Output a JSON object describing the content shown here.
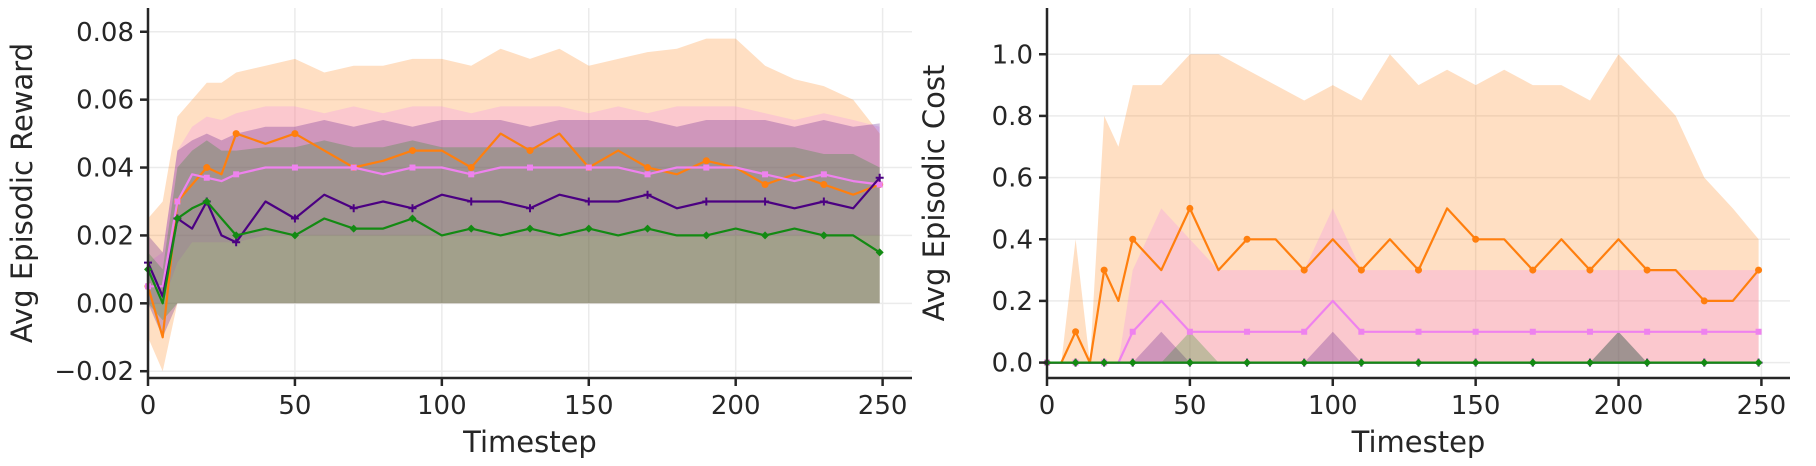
{
  "colors": {
    "orange": "#ff7f0e",
    "violet": "#ee82ee",
    "indigo": "#4b0082",
    "green": "#138a13"
  },
  "chart_data": [
    {
      "type": "line",
      "xlabel": "Timestep",
      "ylabel": "Avg Episodic Reward",
      "xlim": [
        0,
        260
      ],
      "ylim": [
        -0.022,
        0.087
      ],
      "xticks": [
        0,
        50,
        100,
        150,
        200,
        250
      ],
      "xtick_labels": [
        "0",
        "50",
        "100",
        "150",
        "200",
        "250"
      ],
      "yticks": [
        -0.02,
        0.0,
        0.02,
        0.04,
        0.06,
        0.08
      ],
      "ytick_labels": [
        "−0.02",
        "0.00",
        "0.02",
        "0.04",
        "0.06",
        "0.08"
      ],
      "grid": true,
      "x": [
        0,
        5,
        10,
        15,
        20,
        25,
        30,
        40,
        50,
        60,
        70,
        80,
        90,
        100,
        110,
        120,
        130,
        140,
        150,
        160,
        170,
        180,
        190,
        200,
        210,
        220,
        230,
        240,
        249
      ],
      "series": [
        {
          "color": "orange",
          "marker": "circle",
          "values": [
            0.005,
            -0.01,
            0.03,
            0.035,
            0.04,
            0.038,
            0.05,
            0.047,
            0.05,
            0.045,
            0.04,
            0.042,
            0.045,
            0.045,
            0.04,
            0.05,
            0.045,
            0.05,
            0.04,
            0.045,
            0.04,
            0.038,
            0.042,
            0.04,
            0.035,
            0.038,
            0.035,
            0.032,
            0.035
          ],
          "lower": [
            -0.01,
            -0.02,
            0.0,
            0.0,
            0.0,
            0.0,
            0.0,
            0.0,
            0.0,
            0.0,
            0.0,
            0.0,
            0.0,
            0.0,
            0.0,
            0.0,
            0.0,
            0.0,
            0.0,
            0.0,
            0.0,
            0.0,
            0.0,
            0.0,
            0.0,
            0.0,
            0.0,
            0.0,
            0.0
          ],
          "upper": [
            0.025,
            0.03,
            0.055,
            0.06,
            0.065,
            0.065,
            0.068,
            0.07,
            0.072,
            0.068,
            0.07,
            0.07,
            0.072,
            0.072,
            0.07,
            0.075,
            0.072,
            0.075,
            0.07,
            0.072,
            0.074,
            0.075,
            0.078,
            0.078,
            0.07,
            0.066,
            0.064,
            0.06,
            0.05
          ]
        },
        {
          "color": "violet",
          "marker": "square",
          "values": [
            0.005,
            0.005,
            0.03,
            0.038,
            0.037,
            0.036,
            0.038,
            0.04,
            0.04,
            0.04,
            0.04,
            0.038,
            0.04,
            0.04,
            0.038,
            0.04,
            0.04,
            0.04,
            0.04,
            0.04,
            0.038,
            0.04,
            0.04,
            0.04,
            0.038,
            0.036,
            0.038,
            0.036,
            0.035
          ],
          "lower": [
            0.0,
            0.0,
            0.012,
            0.018,
            0.018,
            0.018,
            0.018,
            0.02,
            0.02,
            0.02,
            0.02,
            0.02,
            0.02,
            0.02,
            0.02,
            0.02,
            0.02,
            0.02,
            0.02,
            0.02,
            0.02,
            0.02,
            0.02,
            0.02,
            0.02,
            0.02,
            0.02,
            0.02,
            0.02
          ],
          "upper": [
            0.012,
            0.015,
            0.045,
            0.052,
            0.055,
            0.054,
            0.056,
            0.058,
            0.058,
            0.056,
            0.058,
            0.056,
            0.058,
            0.058,
            0.056,
            0.058,
            0.058,
            0.058,
            0.056,
            0.058,
            0.056,
            0.058,
            0.058,
            0.058,
            0.056,
            0.054,
            0.056,
            0.054,
            0.052
          ]
        },
        {
          "color": "indigo",
          "marker": "plus",
          "values": [
            0.012,
            0.002,
            0.025,
            0.022,
            0.03,
            0.02,
            0.018,
            0.03,
            0.025,
            0.032,
            0.028,
            0.03,
            0.028,
            0.032,
            0.03,
            0.03,
            0.028,
            0.032,
            0.03,
            0.03,
            0.032,
            0.028,
            0.03,
            0.03,
            0.03,
            0.028,
            0.03,
            0.028,
            0.037
          ],
          "lower": [
            0.0,
            -0.01,
            0.0,
            0.0,
            0.0,
            0.0,
            0.0,
            0.0,
            0.0,
            0.0,
            0.0,
            0.0,
            0.0,
            0.0,
            0.0,
            0.0,
            0.0,
            0.0,
            0.0,
            0.0,
            0.0,
            0.0,
            0.0,
            0.0,
            0.0,
            0.0,
            0.0,
            0.0,
            0.0
          ],
          "upper": [
            0.02,
            0.015,
            0.045,
            0.048,
            0.05,
            0.048,
            0.05,
            0.052,
            0.052,
            0.054,
            0.052,
            0.054,
            0.052,
            0.054,
            0.054,
            0.054,
            0.052,
            0.054,
            0.054,
            0.054,
            0.054,
            0.052,
            0.054,
            0.054,
            0.054,
            0.052,
            0.054,
            0.052,
            0.053
          ]
        },
        {
          "color": "green",
          "marker": "diamond",
          "values": [
            0.01,
            0.0,
            0.025,
            0.028,
            0.03,
            0.025,
            0.02,
            0.022,
            0.02,
            0.025,
            0.022,
            0.022,
            0.025,
            0.02,
            0.022,
            0.02,
            0.022,
            0.02,
            0.022,
            0.02,
            0.022,
            0.02,
            0.02,
            0.022,
            0.02,
            0.022,
            0.02,
            0.02,
            0.015
          ],
          "lower": [
            0.0,
            -0.005,
            0.0,
            0.0,
            0.0,
            0.0,
            0.0,
            0.0,
            0.0,
            0.0,
            0.0,
            0.0,
            0.0,
            0.0,
            0.0,
            0.0,
            0.0,
            0.0,
            0.0,
            0.0,
            0.0,
            0.0,
            0.0,
            0.0,
            0.0,
            0.0,
            0.0,
            0.0,
            0.0
          ],
          "upper": [
            0.015,
            0.01,
            0.04,
            0.045,
            0.048,
            0.045,
            0.045,
            0.046,
            0.046,
            0.048,
            0.046,
            0.046,
            0.048,
            0.046,
            0.046,
            0.046,
            0.046,
            0.046,
            0.046,
            0.046,
            0.046,
            0.046,
            0.046,
            0.046,
            0.046,
            0.046,
            0.044,
            0.044,
            0.04
          ]
        }
      ]
    },
    {
      "type": "line",
      "xlabel": "Timestep",
      "ylabel": "Avg Episodic Cost",
      "xlim": [
        0,
        260
      ],
      "ylim": [
        -0.05,
        1.15
      ],
      "xticks": [
        0,
        50,
        100,
        150,
        200,
        250
      ],
      "xtick_labels": [
        "0",
        "50",
        "100",
        "150",
        "200",
        "250"
      ],
      "yticks": [
        0.0,
        0.2,
        0.4,
        0.6,
        0.8,
        1.0
      ],
      "ytick_labels": [
        "0.0",
        "0.2",
        "0.4",
        "0.6",
        "0.8",
        "1.0"
      ],
      "grid": true,
      "x": [
        0,
        5,
        10,
        15,
        20,
        25,
        30,
        40,
        50,
        60,
        70,
        80,
        90,
        100,
        110,
        120,
        130,
        140,
        150,
        160,
        170,
        180,
        190,
        200,
        210,
        220,
        230,
        240,
        249
      ],
      "series": [
        {
          "color": "orange",
          "marker": "circle",
          "values": [
            0.0,
            0.0,
            0.1,
            0.0,
            0.3,
            0.2,
            0.4,
            0.3,
            0.5,
            0.3,
            0.4,
            0.4,
            0.3,
            0.4,
            0.3,
            0.4,
            0.3,
            0.5,
            0.4,
            0.4,
            0.3,
            0.4,
            0.3,
            0.4,
            0.3,
            0.3,
            0.2,
            0.2,
            0.3
          ],
          "lower": [
            0.0,
            0.0,
            0.0,
            0.0,
            0.0,
            0.0,
            0.0,
            0.0,
            0.0,
            0.0,
            0.0,
            0.0,
            0.0,
            0.0,
            0.0,
            0.0,
            0.0,
            0.0,
            0.0,
            0.0,
            0.0,
            0.0,
            0.0,
            0.0,
            0.0,
            0.0,
            0.0,
            0.0,
            0.0
          ],
          "upper": [
            0.0,
            0.0,
            0.4,
            0.0,
            0.8,
            0.7,
            0.9,
            0.9,
            1.0,
            1.0,
            0.95,
            0.9,
            0.85,
            0.9,
            0.85,
            1.0,
            0.9,
            0.95,
            0.9,
            0.95,
            0.9,
            0.9,
            0.85,
            1.0,
            0.9,
            0.8,
            0.6,
            0.5,
            0.4
          ]
        },
        {
          "color": "violet",
          "marker": "square",
          "values": [
            0.0,
            0.0,
            0.0,
            0.0,
            0.0,
            0.0,
            0.1,
            0.2,
            0.1,
            0.1,
            0.1,
            0.1,
            0.1,
            0.2,
            0.1,
            0.1,
            0.1,
            0.1,
            0.1,
            0.1,
            0.1,
            0.1,
            0.1,
            0.1,
            0.1,
            0.1,
            0.1,
            0.1,
            0.1
          ],
          "lower": [
            0.0,
            0.0,
            0.0,
            0.0,
            0.0,
            0.0,
            0.0,
            0.0,
            0.0,
            0.0,
            0.0,
            0.0,
            0.0,
            0.0,
            0.0,
            0.0,
            0.0,
            0.0,
            0.0,
            0.0,
            0.0,
            0.0,
            0.0,
            0.0,
            0.0,
            0.0,
            0.0,
            0.0,
            0.0
          ],
          "upper": [
            0.0,
            0.0,
            0.0,
            0.0,
            0.0,
            0.0,
            0.3,
            0.5,
            0.4,
            0.3,
            0.3,
            0.3,
            0.3,
            0.5,
            0.3,
            0.3,
            0.3,
            0.3,
            0.3,
            0.3,
            0.3,
            0.3,
            0.3,
            0.3,
            0.3,
            0.3,
            0.3,
            0.3,
            0.3
          ]
        },
        {
          "color": "indigo",
          "marker": "plus",
          "values": [
            0.0,
            0.0,
            0.0,
            0.0,
            0.0,
            0.0,
            0.0,
            0.0,
            0.0,
            0.0,
            0.0,
            0.0,
            0.0,
            0.0,
            0.0,
            0.0,
            0.0,
            0.0,
            0.0,
            0.0,
            0.0,
            0.0,
            0.0,
            0.0,
            0.0,
            0.0,
            0.0,
            0.0,
            0.0
          ],
          "lower": [
            0.0,
            0.0,
            0.0,
            0.0,
            0.0,
            0.0,
            0.0,
            0.0,
            0.0,
            0.0,
            0.0,
            0.0,
            0.0,
            0.0,
            0.0,
            0.0,
            0.0,
            0.0,
            0.0,
            0.0,
            0.0,
            0.0,
            0.0,
            0.0,
            0.0,
            0.0,
            0.0,
            0.0,
            0.0
          ],
          "upper": [
            0.0,
            0.0,
            0.0,
            0.0,
            0.0,
            0.0,
            0.0,
            0.1,
            0.0,
            0.0,
            0.0,
            0.0,
            0.0,
            0.1,
            0.0,
            0.0,
            0.0,
            0.0,
            0.0,
            0.0,
            0.0,
            0.0,
            0.0,
            0.1,
            0.0,
            0.0,
            0.0,
            0.0,
            0.0
          ]
        },
        {
          "color": "green",
          "marker": "diamond",
          "values": [
            0.0,
            0.0,
            0.0,
            0.0,
            0.0,
            0.0,
            0.0,
            0.0,
            0.0,
            0.0,
            0.0,
            0.0,
            0.0,
            0.0,
            0.0,
            0.0,
            0.0,
            0.0,
            0.0,
            0.0,
            0.0,
            0.0,
            0.0,
            0.0,
            0.0,
            0.0,
            0.0,
            0.0,
            0.0
          ],
          "lower": [
            0.0,
            0.0,
            0.0,
            0.0,
            0.0,
            0.0,
            0.0,
            0.0,
            0.0,
            0.0,
            0.0,
            0.0,
            0.0,
            0.0,
            0.0,
            0.0,
            0.0,
            0.0,
            0.0,
            0.0,
            0.0,
            0.0,
            0.0,
            0.0,
            0.0,
            0.0,
            0.0,
            0.0,
            0.0
          ],
          "upper": [
            0.0,
            0.0,
            0.0,
            0.0,
            0.0,
            0.0,
            0.0,
            0.0,
            0.1,
            0.0,
            0.0,
            0.0,
            0.0,
            0.0,
            0.0,
            0.0,
            0.0,
            0.0,
            0.0,
            0.0,
            0.0,
            0.0,
            0.0,
            0.1,
            0.0,
            0.0,
            0.0,
            0.0,
            0.0
          ]
        }
      ]
    }
  ]
}
